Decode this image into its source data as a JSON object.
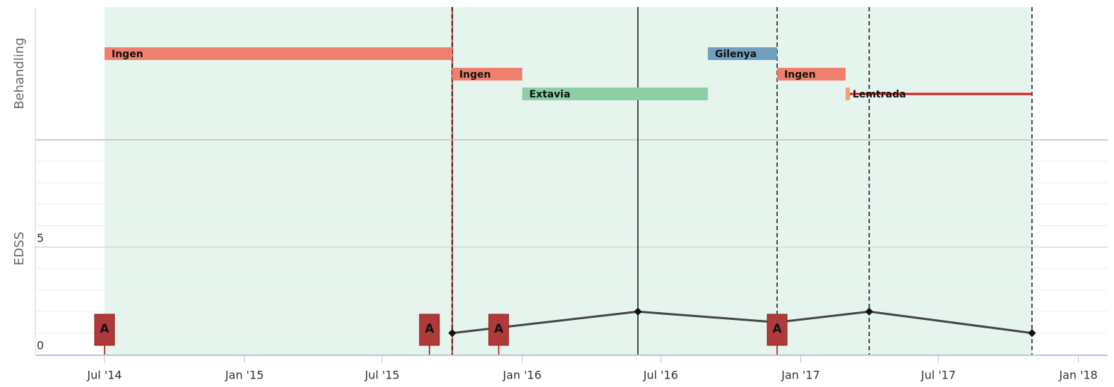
{
  "chart_data": {
    "type": "timeline",
    "y_label_top": "Behandling",
    "y_label_bottom": "EDSS",
    "xlim": [
      "2014-04",
      "2018-02"
    ],
    "xticks": [
      {
        "value": "2014-07",
        "label": "Jul '14"
      },
      {
        "value": "2015-01",
        "label": "Jan '15"
      },
      {
        "value": "2015-07",
        "label": "Jul '15"
      },
      {
        "value": "2016-01",
        "label": "Jan '16"
      },
      {
        "value": "2016-07",
        "label": "Jul '16"
      },
      {
        "value": "2017-01",
        "label": "Jan '17"
      },
      {
        "value": "2017-07",
        "label": "Jul '17"
      },
      {
        "value": "2018-01",
        "label": "Jan '18"
      }
    ],
    "treatments": [
      {
        "name": "Ingen",
        "start": "2014-07",
        "end": "2015-10",
        "color": "#f0806e"
      },
      {
        "name": "Ingen",
        "start": "2015-10",
        "end": "2016-01",
        "color": "#f0806e"
      },
      {
        "name": "Extavia",
        "start": "2016-01",
        "end": "2016-09",
        "color": "#8ccfa6"
      },
      {
        "name": "Gilenya",
        "start": "2016-09",
        "end": "2016-12",
        "color": "#739ebf"
      },
      {
        "name": "Ingen",
        "start": "2016-12",
        "end": "2017-03",
        "color": "#f0806e"
      },
      {
        "name": "Lemtrada",
        "start": "2017-03",
        "end": "2017-11",
        "color": "#f5a070"
      }
    ],
    "relapses": [
      {
        "date": "2014-07",
        "label": "A"
      },
      {
        "date": "2015-09",
        "label": "A"
      },
      {
        "date": "2015-12",
        "label": "A"
      },
      {
        "date": "2016-12",
        "label": "A"
      }
    ],
    "edss": {
      "x": [
        "2015-10",
        "2016-06",
        "2016-12",
        "2017-04",
        "2017-11"
      ],
      "values": [
        1,
        2,
        1.5,
        2,
        1
      ],
      "color": "#444"
    },
    "ylim": [
      0,
      10
    ],
    "yticks": [
      0,
      5
    ],
    "grid": true
  }
}
